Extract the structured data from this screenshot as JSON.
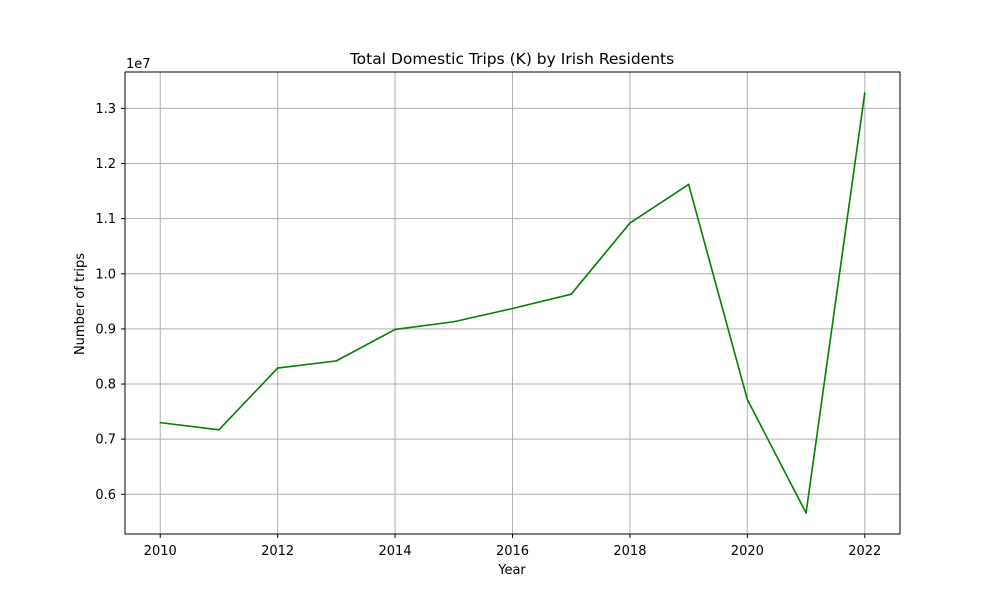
{
  "chart_data": {
    "type": "line",
    "title": "Total Domestic Trips (K) by Irish Residents",
    "xlabel": "Year",
    "ylabel": "Number of trips",
    "y_offset_label": "1e7",
    "x": [
      2010,
      2011,
      2012,
      2013,
      2014,
      2015,
      2016,
      2017,
      2018,
      2019,
      2020,
      2021,
      2022
    ],
    "series": [
      {
        "values": [
          7300000,
          7170000,
          8290000,
          8420000,
          8990000,
          9130000,
          9370000,
          9630000,
          10920000,
          11620000,
          7720000,
          5660000,
          13280000
        ]
      }
    ],
    "xlim": [
      2009.4,
      2022.6
    ],
    "ylim": [
      5280000,
      13660000
    ],
    "x_ticks": [
      2010,
      2012,
      2014,
      2016,
      2018,
      2020,
      2022
    ],
    "x_tick_labels": [
      "2010",
      "2012",
      "2014",
      "2016",
      "2018",
      "2020",
      "2022"
    ],
    "y_ticks": [
      6000000,
      7000000,
      8000000,
      9000000,
      10000000,
      11000000,
      12000000,
      13000000
    ],
    "y_tick_labels": [
      "0.6",
      "0.7",
      "0.8",
      "0.9",
      "1.0",
      "1.1",
      "1.2",
      "1.3"
    ],
    "grid": true,
    "line_color": "#008000"
  }
}
